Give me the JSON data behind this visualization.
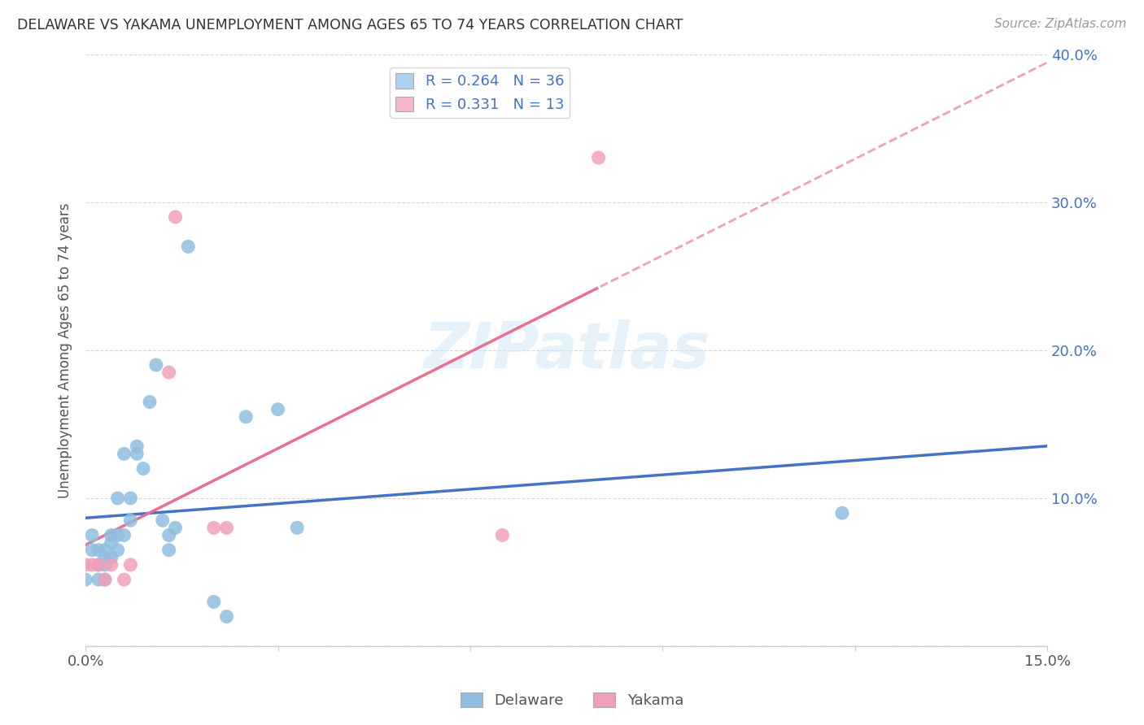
{
  "title": "DELAWARE VS YAKAMA UNEMPLOYMENT AMONG AGES 65 TO 74 YEARS CORRELATION CHART",
  "source": "Source: ZipAtlas.com",
  "ylabel": "Unemployment Among Ages 65 to 74 years",
  "xlim": [
    0.0,
    0.15
  ],
  "ylim": [
    -0.02,
    0.42
  ],
  "plot_ylim": [
    0.0,
    0.4
  ],
  "xticks": [
    0.0,
    0.03,
    0.06,
    0.09,
    0.12,
    0.15
  ],
  "xtick_labels": [
    "0.0%",
    "",
    "",
    "",
    "",
    "15.0%"
  ],
  "yticks": [
    0.0,
    0.1,
    0.2,
    0.3,
    0.4
  ],
  "ytick_labels_right": [
    "",
    "10.0%",
    "20.0%",
    "30.0%",
    "40.0%"
  ],
  "legend_entries": [
    {
      "label_r": "R = 0.264",
      "label_n": "N = 36",
      "color": "#aed1f0"
    },
    {
      "label_r": "R = 0.331",
      "label_n": "N = 13",
      "color": "#f5b8c8"
    }
  ],
  "delaware_color": "#90bde0",
  "yakama_color": "#f0a0b8",
  "delaware_line_color": "#4472c4",
  "yakama_line_color": "#e87090",
  "yakama_dash_color": "#f0a0b8",
  "watermark_text": "ZIPatlas",
  "delaware_x": [
    0.0,
    0.001,
    0.001,
    0.002,
    0.002,
    0.002,
    0.003,
    0.003,
    0.003,
    0.003,
    0.004,
    0.004,
    0.004,
    0.005,
    0.005,
    0.005,
    0.006,
    0.006,
    0.007,
    0.007,
    0.008,
    0.008,
    0.009,
    0.01,
    0.011,
    0.012,
    0.013,
    0.013,
    0.014,
    0.016,
    0.02,
    0.022,
    0.025,
    0.03,
    0.033,
    0.118
  ],
  "delaware_y": [
    0.045,
    0.075,
    0.065,
    0.065,
    0.055,
    0.045,
    0.065,
    0.06,
    0.055,
    0.045,
    0.075,
    0.07,
    0.06,
    0.1,
    0.075,
    0.065,
    0.13,
    0.075,
    0.085,
    0.1,
    0.135,
    0.13,
    0.12,
    0.165,
    0.19,
    0.085,
    0.075,
    0.065,
    0.08,
    0.27,
    0.03,
    0.02,
    0.155,
    0.16,
    0.08,
    0.09
  ],
  "yakama_x": [
    0.0,
    0.001,
    0.002,
    0.003,
    0.004,
    0.006,
    0.007,
    0.013,
    0.014,
    0.02,
    0.022,
    0.065,
    0.08
  ],
  "yakama_y": [
    0.055,
    0.055,
    0.055,
    0.045,
    0.055,
    0.045,
    0.055,
    0.185,
    0.29,
    0.08,
    0.08,
    0.075,
    0.33
  ]
}
